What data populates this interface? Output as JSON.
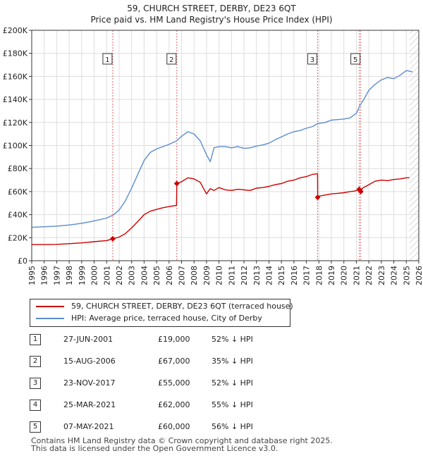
{
  "chart_data": {
    "type": "line",
    "title": "59, CHURCH STREET, DERBY, DE23 6QT",
    "subtitle": "Price paid vs. HM Land Registry's House Price Index (HPI)",
    "xlim": [
      1995,
      2026
    ],
    "ylim": [
      0,
      200000
    ],
    "y_ticks": [
      0,
      20000,
      40000,
      60000,
      80000,
      100000,
      120000,
      140000,
      160000,
      180000,
      200000
    ],
    "y_tick_labels": [
      "£0",
      "£20K",
      "£40K",
      "£60K",
      "£80K",
      "£100K",
      "£120K",
      "£140K",
      "£160K",
      "£180K",
      "£200K"
    ],
    "x_ticks": [
      1995,
      1996,
      1997,
      1998,
      1999,
      2000,
      2001,
      2002,
      2003,
      2004,
      2005,
      2006,
      2007,
      2008,
      2009,
      2010,
      2011,
      2012,
      2013,
      2014,
      2015,
      2016,
      2017,
      2018,
      2019,
      2020,
      2021,
      2022,
      2023,
      2024,
      2025,
      2026
    ],
    "x_tick_labels": [
      "1995",
      "1996",
      "1997",
      "1998",
      "1999",
      "2000",
      "2001",
      "2002",
      "2003",
      "2004",
      "2005",
      "2006",
      "2007",
      "2008",
      "2009",
      "2010",
      "2011",
      "2012",
      "2013",
      "2014",
      "2015",
      "2016",
      "2017",
      "2018",
      "2019",
      "2020",
      "2021",
      "2022",
      "2023",
      "2024",
      "2025",
      "2026"
    ],
    "grid": true,
    "hatched_from": 2025.25,
    "series": [
      {
        "name": "59, CHURCH STREET, DERBY, DE23 6QT (terraced house)",
        "color": "#cc0000",
        "x": [
          1995.0,
          1996.0,
          1997.0,
          1998.0,
          1999.0,
          2000.0,
          2001.0,
          2001.49,
          2002.0,
          2002.5,
          2003.0,
          2003.5,
          2004.0,
          2004.5,
          2005.0,
          2005.5,
          2006.0,
          2006.6,
          2006.62,
          2007.0,
          2007.5,
          2008.0,
          2008.5,
          2009.0,
          2009.3,
          2009.6,
          2010.0,
          2010.5,
          2011.0,
          2011.5,
          2012.0,
          2012.5,
          2013.0,
          2013.5,
          2014.0,
          2014.5,
          2015.0,
          2015.5,
          2016.0,
          2016.5,
          2017.0,
          2017.5,
          2017.89,
          2017.9,
          2018.0,
          2018.5,
          2019.0,
          2019.5,
          2020.0,
          2020.5,
          2020.9,
          2021.23,
          2021.35,
          2021.5,
          2022.0,
          2022.5,
          2023.0,
          2023.5,
          2024.0,
          2024.5,
          2025.0,
          2025.25
        ],
        "y": [
          14000,
          14000,
          14200,
          14800,
          15500,
          16500,
          17500,
          19000,
          20500,
          23500,
          28500,
          34000,
          40000,
          43000,
          44500,
          46000,
          47000,
          48000,
          67000,
          68500,
          72000,
          71000,
          68000,
          58000,
          62500,
          61000,
          63500,
          61500,
          61000,
          62000,
          61500,
          61000,
          63000,
          63500,
          64500,
          66000,
          67000,
          69000,
          70000,
          72000,
          73000,
          75000,
          75500,
          55000,
          56000,
          57000,
          58000,
          58500,
          59000,
          60000,
          60500,
          62000,
          60000,
          63000,
          66000,
          69000,
          70000,
          69500,
          70500,
          71000,
          72000,
          72000
        ]
      },
      {
        "name": "HPI: Average price, terraced house, City of Derby",
        "color": "#5b8ccc",
        "x": [
          1995.0,
          1996.0,
          1997.0,
          1998.0,
          1999.0,
          2000.0,
          2001.0,
          2001.5,
          2002.0,
          2002.5,
          2003.0,
          2003.5,
          2004.0,
          2004.5,
          2005.0,
          2005.5,
          2006.0,
          2006.6,
          2007.0,
          2007.5,
          2008.0,
          2008.5,
          2009.0,
          2009.3,
          2009.6,
          2010.0,
          2010.5,
          2011.0,
          2011.5,
          2012.0,
          2012.5,
          2013.0,
          2013.5,
          2014.0,
          2014.5,
          2015.0,
          2015.5,
          2016.0,
          2016.5,
          2017.0,
          2017.5,
          2017.9,
          2018.5,
          2019.0,
          2019.5,
          2020.0,
          2020.5,
          2021.0,
          2021.3,
          2021.6,
          2022.0,
          2022.5,
          2023.0,
          2023.5,
          2024.0,
          2024.5,
          2025.0,
          2025.5
        ],
        "y": [
          29000,
          29500,
          30000,
          31000,
          32500,
          34500,
          37000,
          39500,
          44000,
          52000,
          63000,
          75000,
          87000,
          94000,
          97000,
          99000,
          101000,
          104000,
          108000,
          112000,
          110000,
          104000,
          92000,
          86000,
          98000,
          99000,
          99000,
          98000,
          99000,
          97500,
          98000,
          99500,
          100500,
          102000,
          105000,
          107500,
          110000,
          112000,
          113000,
          115000,
          116500,
          119000,
          120000,
          122000,
          122500,
          123000,
          124000,
          128000,
          135000,
          140000,
          148000,
          153000,
          157000,
          159000,
          158000,
          161000,
          165000,
          164000
        ]
      }
    ],
    "markers": [
      {
        "label": "1",
        "x": 2001.49,
        "y": 19000
      },
      {
        "label": "2",
        "x": 2006.62,
        "y": 67000
      },
      {
        "label": "3",
        "x": 2017.9,
        "y": 55000
      },
      {
        "label": "4",
        "x": 2021.23,
        "y": 62000
      },
      {
        "label": "5",
        "x": 2021.35,
        "y": 60000
      }
    ],
    "marker_boxes": [
      {
        "label": "1",
        "x": 2001.49
      },
      {
        "label": "2",
        "x": 2006.62
      },
      {
        "label": "3",
        "x": 2017.9
      },
      {
        "label": "5",
        "x": 2021.35
      }
    ]
  },
  "legend": {
    "property_label": "59, CHURCH STREET, DERBY, DE23 6QT (terraced house)",
    "hpi_label": "HPI: Average price, terraced house, City of Derby",
    "property_color": "#cc0000",
    "hpi_color": "#5b8ccc"
  },
  "sales": [
    {
      "num": "1",
      "date": "27-JUN-2001",
      "price": "£19,000",
      "pct": "52% ↓ HPI"
    },
    {
      "num": "2",
      "date": "15-AUG-2006",
      "price": "£67,000",
      "pct": "35% ↓ HPI"
    },
    {
      "num": "3",
      "date": "23-NOV-2017",
      "price": "£55,000",
      "pct": "52% ↓ HPI"
    },
    {
      "num": "4",
      "date": "25-MAR-2021",
      "price": "£62,000",
      "pct": "55% ↓ HPI"
    },
    {
      "num": "5",
      "date": "07-MAY-2021",
      "price": "£60,000",
      "pct": "56% ↓ HPI"
    }
  ],
  "footer": {
    "line1": "Contains HM Land Registry data © Crown copyright and database right 2025.",
    "line2": "This data is licensed under the Open Government Licence v3.0."
  }
}
